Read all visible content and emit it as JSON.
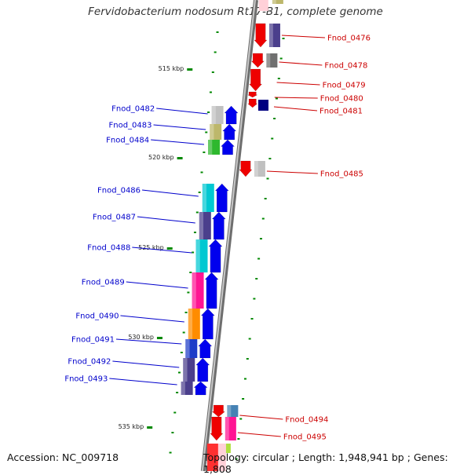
{
  "title": "Fervidobacterium nodosum Rt17-B1, complete genome",
  "footer": {
    "accession_label": "Accession:",
    "accession": "NC_009718",
    "topology_label": "Topology:",
    "topology": "circular",
    "length_label": "Length:",
    "length": "1,948,941 bp",
    "genes_label": "Genes:",
    "genes": "1,808"
  },
  "colors": {
    "forward_label": "#0000cc",
    "reverse_label": "#cc0000",
    "backbone": "#8c8c8c",
    "tick": "#008800",
    "arrow_forward": "#0000ee",
    "arrow_reverse": "#ee0000"
  },
  "kbp_markers": [
    "515 kbp",
    "520 kbp",
    "525 kbp",
    "530 kbp",
    "535 kbp"
  ],
  "forward_genes": [
    {
      "label": "Fnod_0482",
      "cog_color": "#c0c0c0"
    },
    {
      "label": "Fnod_0483",
      "cog_color": "#bdb76b"
    },
    {
      "label": "Fnod_0484",
      "cog_color": "#2eb82e"
    },
    {
      "label": "Fnod_0486",
      "cog_color": "#00c8d2"
    },
    {
      "label": "Fnod_0487",
      "cog_color": "#4b3f8c"
    },
    {
      "label": "Fnod_0488",
      "cog_color": "#00c8d2"
    },
    {
      "label": "Fnod_0489",
      "cog_color": "#ff1493"
    },
    {
      "label": "Fnod_0490",
      "cog_color": "#ff8c00"
    },
    {
      "label": "Fnod_0491",
      "cog_color": "#1e3cc8"
    },
    {
      "label": "Fnod_0492",
      "cog_color": "#4b3f8c"
    },
    {
      "label": "Fnod_0493",
      "cog_color": "#4b3f8c"
    }
  ],
  "reverse_genes": [
    {
      "label": "Fnod_0476",
      "cog_color": "#4b3f8c"
    },
    {
      "label": "Fnod_0478",
      "cog_color": "#707070"
    },
    {
      "label": "Fnod_0479",
      "cog_color": ""
    },
    {
      "label": "Fnod_0480",
      "cog_color": ""
    },
    {
      "label": "Fnod_0481",
      "cog_color": "#000080"
    },
    {
      "label": "Fnod_0485",
      "cog_color": "#c0c0c0"
    },
    {
      "label": "Fnod_0494",
      "cog_color": "#4682b4"
    },
    {
      "label": "Fnod_0495",
      "cog_color": "#ff1493"
    }
  ]
}
